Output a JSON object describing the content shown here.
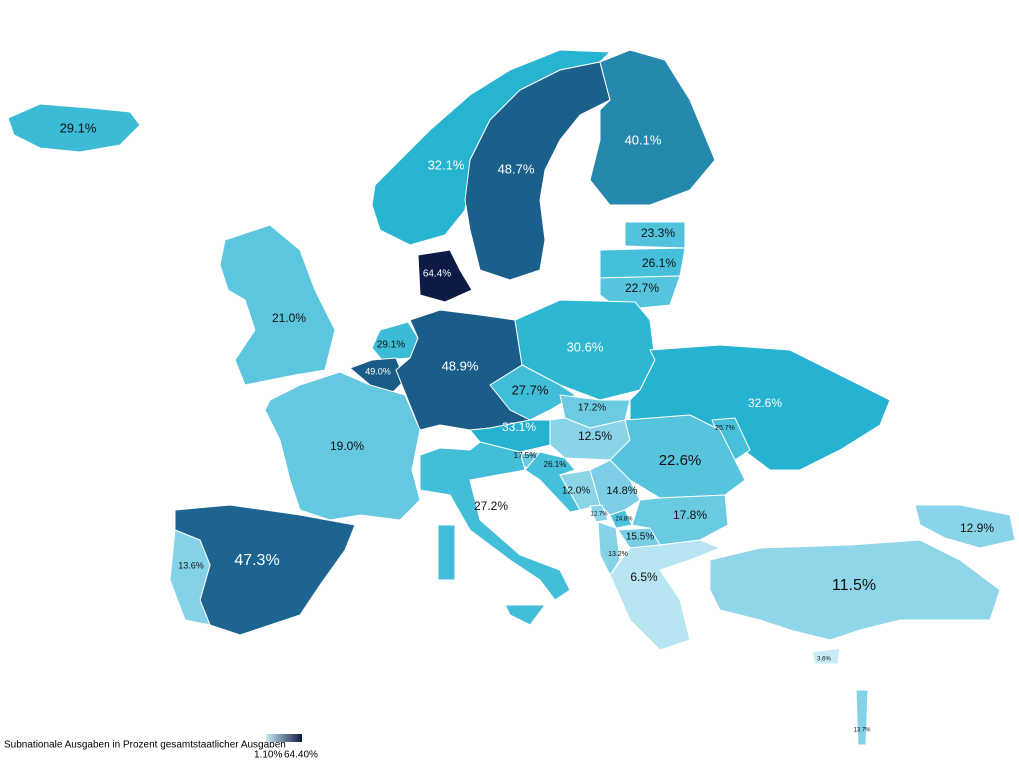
{
  "regions": [
    {
      "label": "29.1%",
      "color": "#3bbbd6"
    },
    {
      "label": "32.1%",
      "color": "#27b4d1"
    },
    {
      "label": "48.7%",
      "color": "#1b5f8b"
    },
    {
      "label": "40.1%",
      "color": "#2589ae"
    },
    {
      "label": "23.3%",
      "color": "#52c3dd"
    },
    {
      "label": "26.1%",
      "color": "#45bfda"
    },
    {
      "label": "22.7%",
      "color": "#56c4dd"
    },
    {
      "label": "64.4%",
      "color": "#0c1a45"
    },
    {
      "label": "21.0%",
      "color": "#5cc6df"
    },
    {
      "label": "29.1%",
      "color": "#3bbbd6"
    },
    {
      "label": "49.0%",
      "color": "#1a5c88"
    },
    {
      "label": "48.9%",
      "color": "#1a5d89"
    },
    {
      "label": "30.6%",
      "color": "#2db7d3"
    },
    {
      "label": "32.6%",
      "color": "#25b3d1"
    },
    {
      "label": "27.7%",
      "color": "#40bdd8"
    },
    {
      "label": "19.0%",
      "color": "#63c8e0"
    },
    {
      "label": "33.1%",
      "color": "#24b2d0"
    },
    {
      "label": "17.2%",
      "color": "#6ccbe2"
    },
    {
      "label": "12.5%",
      "color": "#8ad4e9"
    },
    {
      "label": "25.7%",
      "color": "#48c0da"
    },
    {
      "label": "22.6%",
      "color": "#56c4dd"
    },
    {
      "label": "17.5%",
      "color": "#6acae2"
    },
    {
      "label": "26.1%",
      "color": "#45bfda"
    },
    {
      "label": "12.0%",
      "color": "#8cd5e9"
    },
    {
      "label": "14.8%",
      "color": "#7ccfe6"
    },
    {
      "label": "12.7%",
      "color": "#89d4e8"
    },
    {
      "label": "24.8%",
      "color": "#4cc1db"
    },
    {
      "label": "17.8%",
      "color": "#69cae1"
    },
    {
      "label": "15.5%",
      "color": "#78cee5"
    },
    {
      "label": "13.2%",
      "color": "#86d3e8"
    },
    {
      "label": "6.5%",
      "color": "#b8e5f2"
    },
    {
      "label": "11.5%",
      "color": "#90d6ea"
    },
    {
      "label": "12.9%",
      "color": "#88d4e8"
    },
    {
      "label": "27.2%",
      "color": "#42bed9"
    },
    {
      "label": "47.3%",
      "color": "#1d6590"
    },
    {
      "label": "13.6%",
      "color": "#84d2e8"
    },
    {
      "label": "3.6%",
      "color": "#c9ebf5"
    },
    {
      "label": "13.7%",
      "color": "#83d2e7"
    }
  ],
  "legend": {
    "title": "Subnationale Ausgaben in Prozent gesamtstaatlicher Ausgaben",
    "min": "1.10%",
    "max": "64.40%",
    "colors": [
      "#c9ebf5",
      "#0c1a45"
    ]
  }
}
